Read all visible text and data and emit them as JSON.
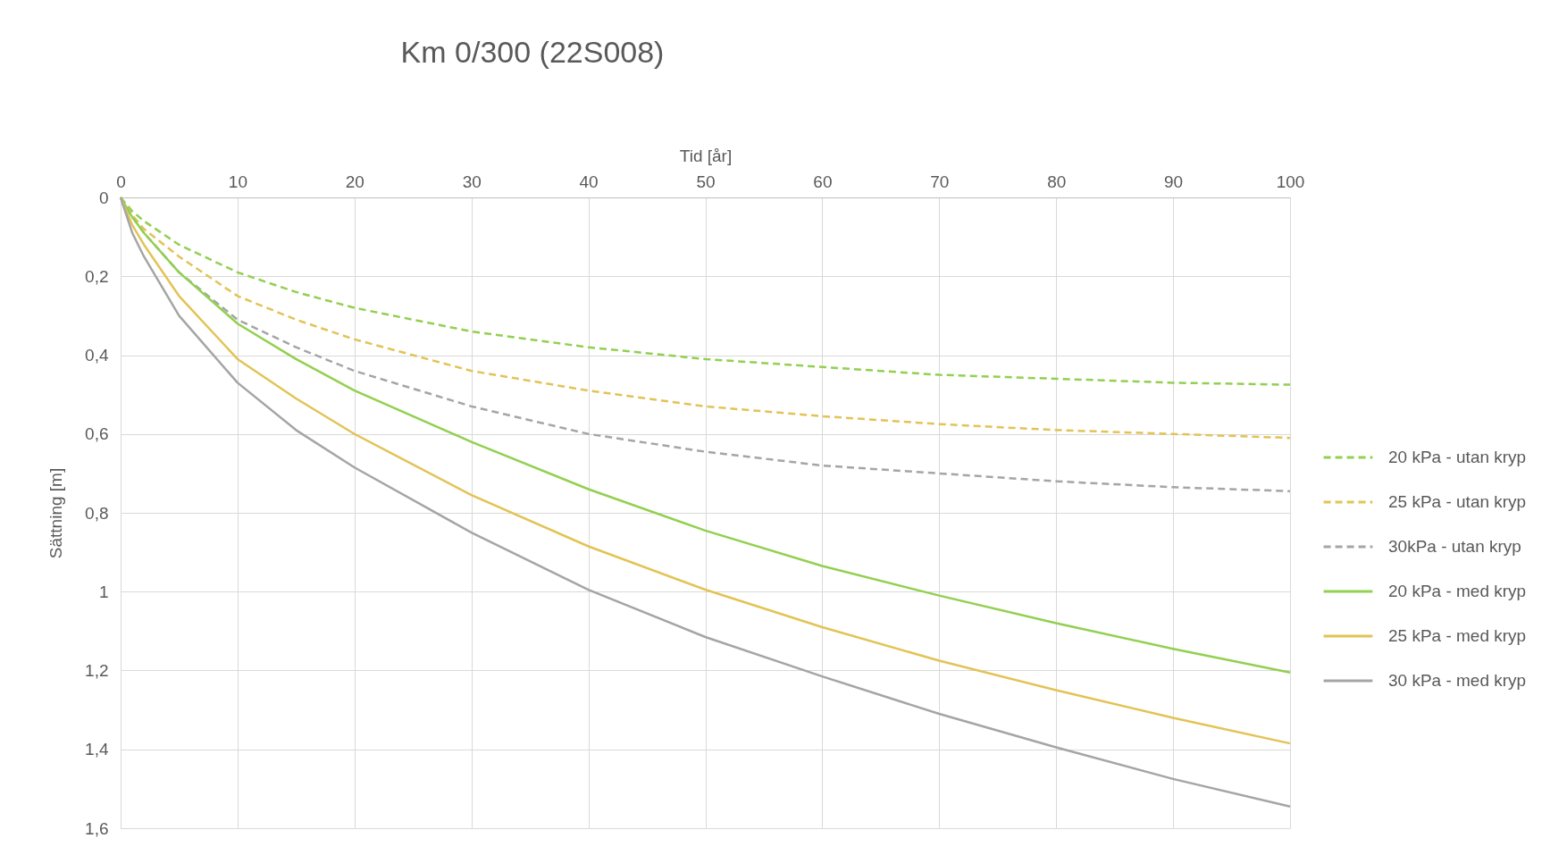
{
  "chart_data": {
    "type": "line",
    "title": "Km 0/300 (22S008)",
    "xlabel": "Tid [år]",
    "ylabel": "Sättning [m]",
    "x": [
      0,
      1,
      2,
      5,
      10,
      15,
      20,
      30,
      40,
      50,
      60,
      70,
      80,
      90,
      100
    ],
    "series": [
      {
        "name": "20 kPa - utan kryp",
        "color": "#92d050",
        "line_style": "dashed",
        "values": [
          0,
          0.035,
          0.06,
          0.12,
          0.19,
          0.24,
          0.28,
          0.34,
          0.38,
          0.41,
          0.43,
          0.45,
          0.46,
          0.47,
          0.475
        ]
      },
      {
        "name": "25 kPa - utan kryp",
        "color": "#e2c355",
        "line_style": "dashed",
        "values": [
          0,
          0.045,
          0.08,
          0.15,
          0.25,
          0.31,
          0.36,
          0.44,
          0.49,
          0.53,
          0.555,
          0.575,
          0.59,
          0.6,
          0.61
        ]
      },
      {
        "name": "30kPa - utan kryp",
        "color": "#a5a5a5",
        "line_style": "dashed",
        "values": [
          0,
          0.05,
          0.09,
          0.19,
          0.31,
          0.38,
          0.44,
          0.53,
          0.6,
          0.645,
          0.68,
          0.7,
          0.72,
          0.735,
          0.745
        ]
      },
      {
        "name": "20 kPa - med kryp",
        "color": "#92d050",
        "line_style": "solid",
        "values": [
          0,
          0.05,
          0.09,
          0.19,
          0.32,
          0.41,
          0.49,
          0.62,
          0.74,
          0.845,
          0.935,
          1.01,
          1.08,
          1.145,
          1.205
        ]
      },
      {
        "name": "25 kPa - med kryp",
        "color": "#e2c355",
        "line_style": "solid",
        "values": [
          0,
          0.07,
          0.12,
          0.25,
          0.41,
          0.51,
          0.6,
          0.755,
          0.885,
          0.995,
          1.09,
          1.175,
          1.25,
          1.32,
          1.385
        ]
      },
      {
        "name": "30 kPa - med kryp",
        "color": "#a5a5a5",
        "line_style": "solid",
        "values": [
          0,
          0.09,
          0.15,
          0.3,
          0.47,
          0.59,
          0.685,
          0.85,
          0.995,
          1.115,
          1.215,
          1.31,
          1.395,
          1.475,
          1.545
        ]
      }
    ],
    "xlim": [
      0,
      100
    ],
    "xticks": [
      0,
      10,
      20,
      30,
      40,
      50,
      60,
      70,
      80,
      90,
      100
    ],
    "ylim": [
      1.6,
      0
    ],
    "yticks": [
      0,
      {
        "value": 0.2,
        "label": "0,2"
      },
      {
        "value": 0.4,
        "label": "0,4"
      },
      {
        "value": 0.6,
        "label": "0,6"
      },
      {
        "value": 0.8,
        "label": "0,8"
      },
      1,
      {
        "value": 1.2,
        "label": "1,2"
      },
      {
        "value": 1.4,
        "label": "1,4"
      },
      {
        "value": 1.6,
        "label": "1,6"
      }
    ],
    "grid": true,
    "legend": "right"
  }
}
